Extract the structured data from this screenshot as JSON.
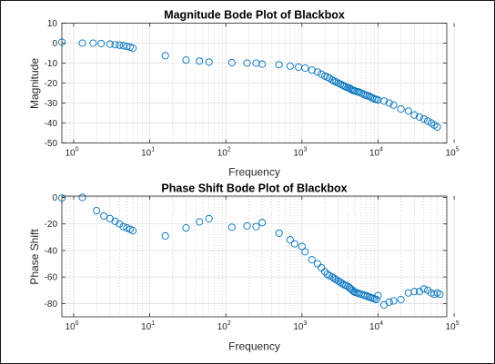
{
  "chart_data": [
    {
      "type": "scatter",
      "title": "Magnitude Bode Plot of Blackbox",
      "xlabel": "Frequency",
      "ylabel": "Magnitude",
      "xscale": "log",
      "xlim": [
        0.7,
        80000
      ],
      "ylim": [
        -50,
        10
      ],
      "grid": true,
      "minor_grid": true,
      "yticks": [
        "10",
        "0",
        "-10",
        "-20",
        "-30",
        "-40",
        "-50"
      ],
      "xticks": [
        {
          "base": "10",
          "exp": "0"
        },
        {
          "base": "10",
          "exp": "1"
        },
        {
          "base": "10",
          "exp": "2"
        },
        {
          "base": "10",
          "exp": "3"
        },
        {
          "base": "10",
          "exp": "4"
        },
        {
          "base": "10",
          "exp": "5"
        }
      ],
      "marker": "circle-open",
      "marker_color": "#0072BD",
      "x": [
        0.7,
        1.3,
        1.8,
        2.3,
        3,
        3.5,
        4,
        4.5,
        5,
        5.5,
        6,
        16,
        30,
        45,
        60,
        120,
        190,
        250,
        300,
        500,
        700,
        900,
        1100,
        1350,
        1600,
        1800,
        2000,
        2150,
        2300,
        2500,
        2650,
        2800,
        3000,
        3200,
        3400,
        3600,
        3800,
        4000,
        4200,
        4400,
        4600,
        4800,
        5000,
        5300,
        5600,
        6000,
        6400,
        6800,
        7200,
        7600,
        8000,
        8500,
        9000,
        9500,
        10000,
        12000,
        14000,
        16000,
        20000,
        25000,
        30000,
        35000,
        40000,
        45000,
        50000,
        55000,
        60000
      ],
      "y": [
        0.5,
        0,
        0,
        -0.2,
        -0.5,
        -0.8,
        -1,
        -1.3,
        -1.6,
        -2,
        -2.5,
        -6.3,
        -8.5,
        -9,
        -9.5,
        -9.8,
        -10,
        -10,
        -10.5,
        -10.8,
        -11.5,
        -12,
        -12.5,
        -13.5,
        -14.5,
        -15.5,
        -16.5,
        -17,
        -17.5,
        -18.5,
        -19,
        -19.5,
        -20,
        -20.5,
        -21,
        -21.5,
        -22,
        -22.3,
        -22.5,
        -23,
        -23.5,
        -23.8,
        -24,
        -24.3,
        -24.5,
        -25,
        -25.5,
        -26,
        -26.3,
        -26.5,
        -27,
        -27.5,
        -28,
        -28.2,
        -28.5,
        -29,
        -30,
        -31,
        -33,
        -34,
        -36,
        -37,
        -38,
        -39,
        -40,
        -41,
        -42
      ]
    },
    {
      "type": "scatter",
      "title": "Phase Shift Bode Plot of Blackbox",
      "xlabel": "Frequency",
      "ylabel": "Phase Shift",
      "xscale": "log",
      "xlim": [
        0.7,
        80000
      ],
      "ylim": [
        -90,
        1
      ],
      "grid": true,
      "minor_grid": true,
      "yticks": [
        "0",
        "-20",
        "-40",
        "-60",
        "-80"
      ],
      "xticks": [
        {
          "base": "10",
          "exp": "0"
        },
        {
          "base": "10",
          "exp": "1"
        },
        {
          "base": "10",
          "exp": "2"
        },
        {
          "base": "10",
          "exp": "3"
        },
        {
          "base": "10",
          "exp": "4"
        },
        {
          "base": "10",
          "exp": "5"
        }
      ],
      "marker": "circle-open",
      "marker_color": "#0072BD",
      "x": [
        0.7,
        1.3,
        2,
        2.5,
        3,
        3.5,
        4,
        4.5,
        5,
        5.5,
        6,
        16,
        30,
        45,
        60,
        120,
        190,
        250,
        300,
        500,
        700,
        800,
        1000,
        1100,
        1350,
        1600,
        1800,
        2000,
        2150,
        2300,
        2500,
        2650,
        2800,
        3000,
        3200,
        3400,
        3600,
        3800,
        4000,
        4200,
        4400,
        4600,
        4800,
        5000,
        5300,
        5600,
        6000,
        6400,
        6800,
        7200,
        7600,
        8000,
        8500,
        9000,
        9500,
        10000,
        12000,
        14000,
        16000,
        20000,
        25000,
        30000,
        35000,
        40000,
        45000,
        50000,
        55000,
        60000,
        65000
      ],
      "y": [
        -0.5,
        0,
        -10,
        -14,
        -16,
        -18,
        -20,
        -22,
        -23,
        -24,
        -25,
        -29,
        -23,
        -18.5,
        -16,
        -22.5,
        -21.5,
        -22,
        -19,
        -27,
        -32,
        -35,
        -37,
        -41,
        -47,
        -50,
        -53,
        -56,
        -58,
        -59,
        -60,
        -61,
        -62,
        -63,
        -64,
        -65,
        -66,
        -66.5,
        -67,
        -68,
        -69,
        -70,
        -71,
        -71.5,
        -72,
        -72.5,
        -73,
        -73.5,
        -74,
        -74.5,
        -75,
        -75.5,
        -76,
        -76.5,
        -77,
        -74,
        -81,
        -79,
        -78,
        -77,
        -72,
        -71,
        -71,
        -69,
        -70,
        -72,
        -73,
        -72,
        -73
      ]
    }
  ]
}
